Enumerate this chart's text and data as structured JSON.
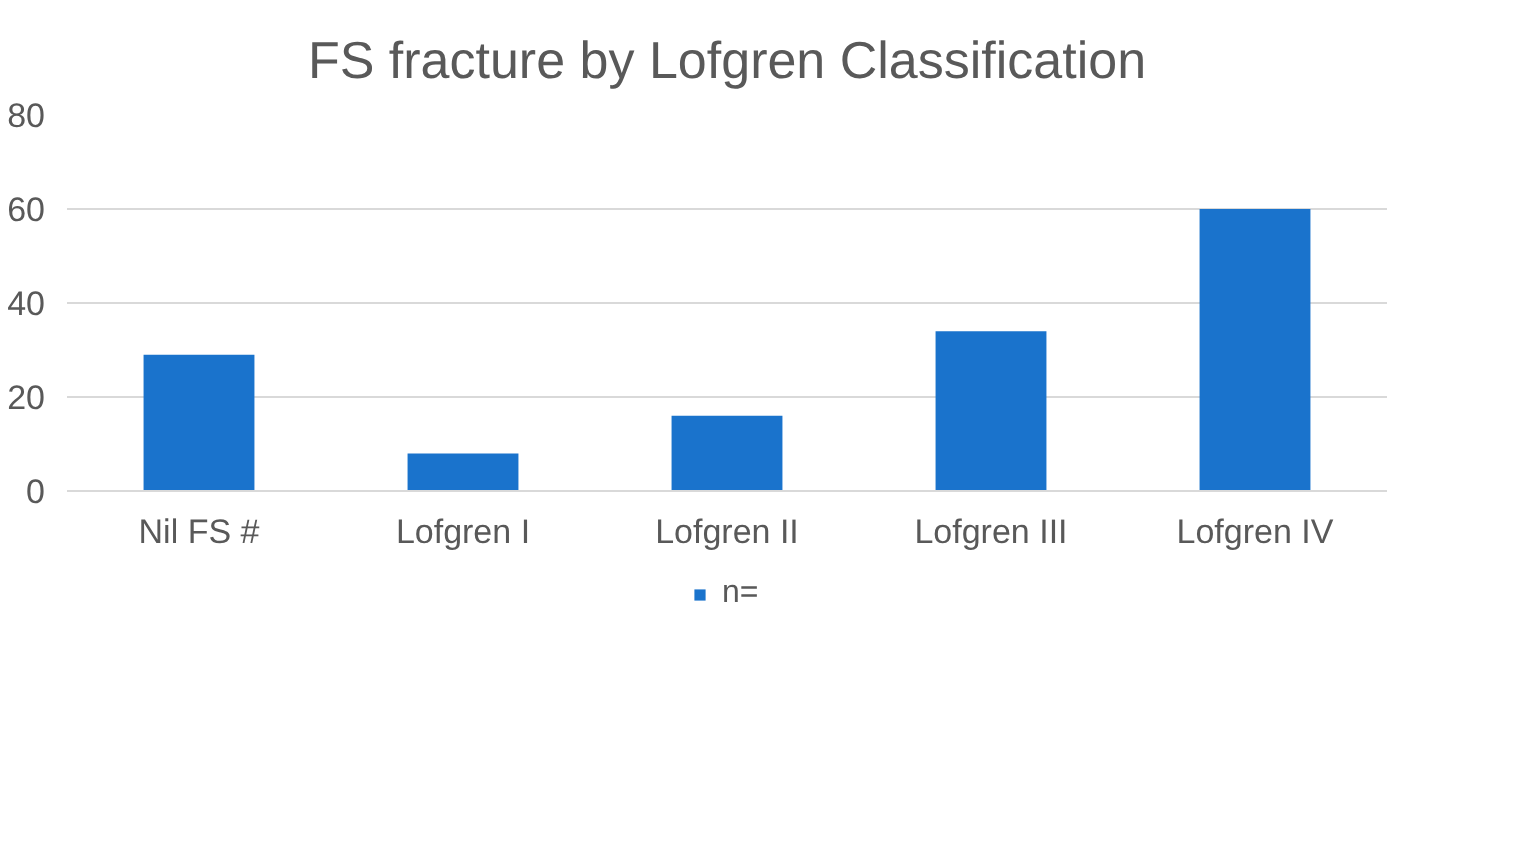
{
  "chart_data": {
    "type": "bar",
    "title": "FS fracture by Lofgren Classification",
    "categories": [
      "Nil FS #",
      "Lofgren I",
      "Lofgren II",
      "Lofgren III",
      "Lofgren IV"
    ],
    "series": [
      {
        "name": "n=",
        "color": "#1a73cc",
        "values": [
          29,
          8,
          16,
          34,
          60
        ]
      }
    ],
    "ylim": [
      0,
      80
    ],
    "yticks": [
      0,
      20,
      40,
      60,
      80
    ],
    "grid": "y",
    "legend": "bottom"
  }
}
